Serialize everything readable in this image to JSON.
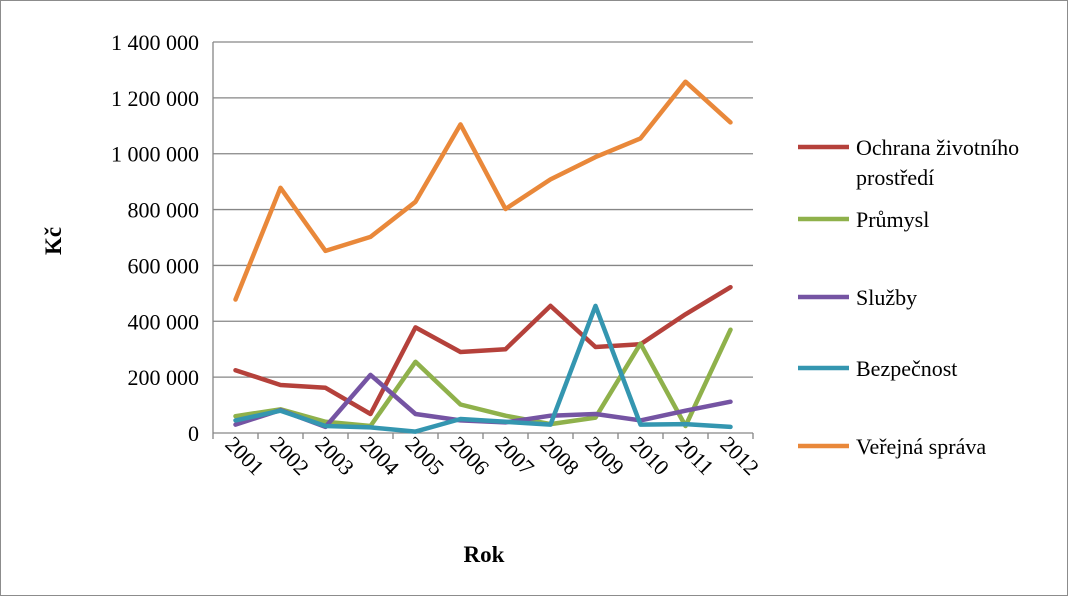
{
  "chart_data": {
    "type": "line",
    "title": "",
    "xlabel": "Rok",
    "ylabel": "Kč",
    "categories": [
      "2001",
      "2002",
      "2003",
      "2004",
      "2005",
      "2006",
      "2007",
      "2008",
      "2009",
      "2010",
      "2011",
      "2012"
    ],
    "ylim": [
      0,
      1400000
    ],
    "yticks": [
      0,
      200000,
      400000,
      600000,
      800000,
      1000000,
      1200000,
      1400000
    ],
    "ytick_labels": [
      "0",
      "200 000",
      "400 000",
      "600 000",
      "800 000",
      "1 000 000",
      "1 200 000",
      "1 400 000"
    ],
    "grid": "horizontal major gridlines",
    "legend_position": "right",
    "series": [
      {
        "name_lines": [
          "Ochrana životního",
          "prostředí"
        ],
        "color": "#b5413b",
        "values": [
          225000,
          172000,
          162000,
          68000,
          378000,
          290000,
          300000,
          455000,
          308000,
          318000,
          425000,
          522000
        ]
      },
      {
        "name_lines": [
          "Průmysl"
        ],
        "color": "#8fb14b",
        "values": [
          60000,
          85000,
          40000,
          25000,
          255000,
          102000,
          62000,
          32000,
          55000,
          320000,
          25000,
          370000
        ]
      },
      {
        "name_lines": [
          "Služby"
        ],
        "color": "#7554a3",
        "values": [
          30000,
          82000,
          22000,
          208000,
          68000,
          45000,
          38000,
          62000,
          68000,
          45000,
          80000,
          112000
        ]
      },
      {
        "name_lines": [
          "Bezpečnost"
        ],
        "color": "#3496b0",
        "values": [
          45000,
          80000,
          25000,
          20000,
          5000,
          50000,
          40000,
          30000,
          455000,
          30000,
          32000,
          22000
        ]
      },
      {
        "name_lines": [
          "Veřejná správa"
        ],
        "color": "#e9883a",
        "values": [
          478000,
          878000,
          652000,
          702000,
          828000,
          1105000,
          802000,
          908000,
          988000,
          1055000,
          1258000,
          1112000
        ]
      }
    ]
  }
}
